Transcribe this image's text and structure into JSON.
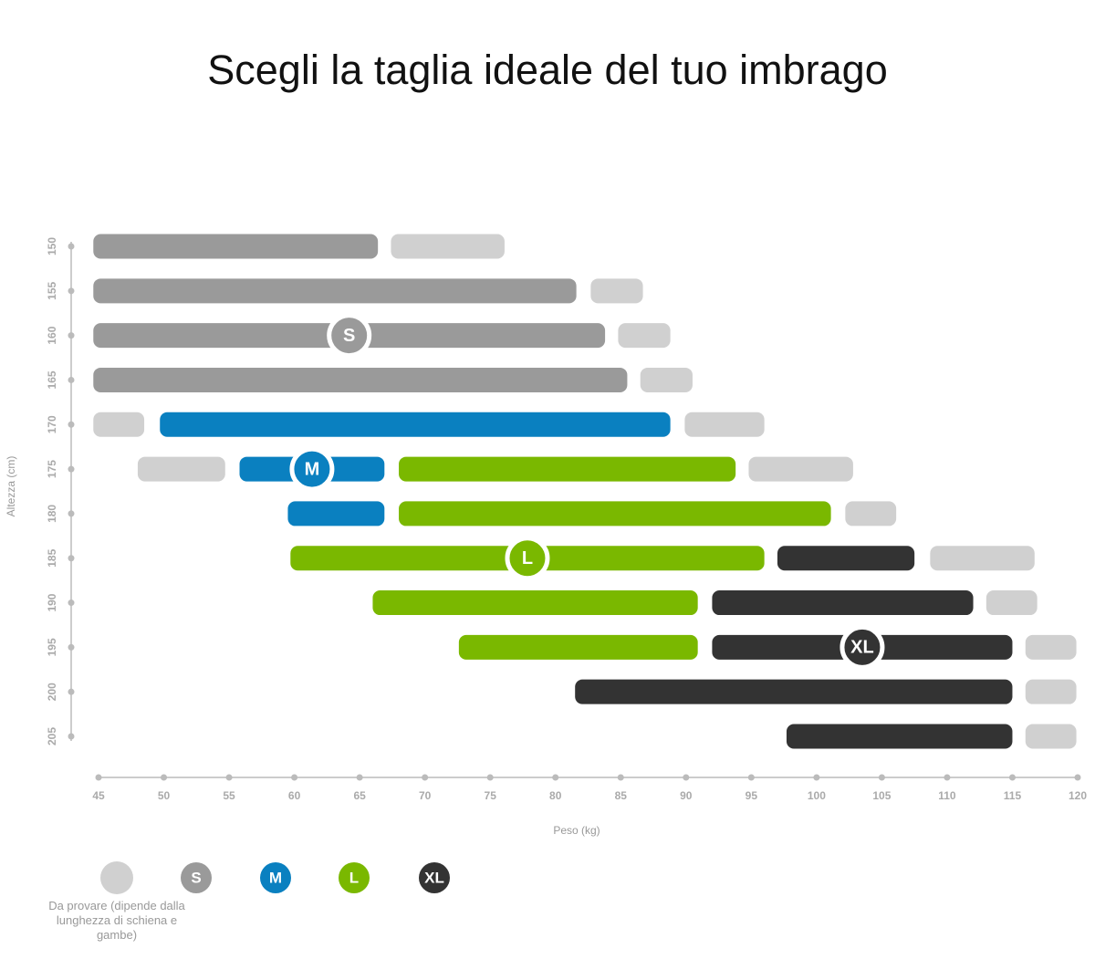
{
  "chart_data": {
    "type": "range-bar",
    "title": "Scegli la taglia ideale del tuo imbrago",
    "x_label": "Peso (kg)",
    "y_label": "Altezza (cm)",
    "xlim": [
      45,
      120
    ],
    "xticks": [
      45,
      50,
      55,
      60,
      65,
      70,
      75,
      80,
      85,
      90,
      95,
      100,
      105,
      110,
      115,
      120
    ],
    "ylim": [
      150,
      205
    ],
    "yticks": [
      150,
      155,
      160,
      165,
      170,
      175,
      180,
      185,
      190,
      195,
      200,
      205
    ],
    "series": [
      {
        "name": "Da provare (dipende dalla lunghezza di schiena e gambe)",
        "color": "#d0d0d0",
        "ranges": [
          {
            "y": 150,
            "start": 67.4,
            "end": 76.1
          },
          {
            "y": 155,
            "start": 82.7,
            "end": 86.7
          },
          {
            "y": 160,
            "start": 84.8,
            "end": 88.8
          },
          {
            "y": 165,
            "start": 86.5,
            "end": 90.5
          },
          {
            "y": 170,
            "start": 44.6,
            "end": 48.5
          },
          {
            "y": 170,
            "start": 89.9,
            "end": 96.0
          },
          {
            "y": 175,
            "start": 48.0,
            "end": 54.7
          },
          {
            "y": 175,
            "start": 94.8,
            "end": 102.8
          },
          {
            "y": 180,
            "start": 102.2,
            "end": 106.1
          },
          {
            "y": 185,
            "start": 108.7,
            "end": 116.7
          },
          {
            "y": 190,
            "start": 113.0,
            "end": 116.9
          },
          {
            "y": 195,
            "start": 116.0,
            "end": 119.9
          },
          {
            "y": 200,
            "start": 116.0,
            "end": 119.9
          },
          {
            "y": 205,
            "start": 116.0,
            "end": 119.9
          }
        ]
      },
      {
        "name": "S",
        "color": "#9a9a9a",
        "ranges": [
          {
            "y": 150,
            "start": 44.6,
            "end": 66.4
          },
          {
            "y": 155,
            "start": 44.6,
            "end": 81.6
          },
          {
            "y": 160,
            "start": 44.6,
            "end": 83.8
          },
          {
            "y": 165,
            "start": 44.6,
            "end": 85.5
          }
        ]
      },
      {
        "name": "M",
        "color": "#0a80c0",
        "ranges": [
          {
            "y": 170,
            "start": 49.7,
            "end": 88.8
          },
          {
            "y": 175,
            "start": 55.8,
            "end": 66.9
          },
          {
            "y": 180,
            "start": 59.5,
            "end": 66.9
          }
        ]
      },
      {
        "name": "L",
        "color": "#7ab800",
        "ranges": [
          {
            "y": 175,
            "start": 68.0,
            "end": 93.8
          },
          {
            "y": 180,
            "start": 68.0,
            "end": 101.1
          },
          {
            "y": 185,
            "start": 59.7,
            "end": 96.0
          },
          {
            "y": 190,
            "start": 66.0,
            "end": 90.9
          },
          {
            "y": 195,
            "start": 72.6,
            "end": 90.9
          }
        ]
      },
      {
        "name": "XL",
        "color": "#333333",
        "ranges": [
          {
            "y": 185,
            "start": 97.0,
            "end": 107.5
          },
          {
            "y": 190,
            "start": 92.0,
            "end": 112.0
          },
          {
            "y": 195,
            "start": 92.0,
            "end": 115.0
          },
          {
            "y": 200,
            "start": 81.5,
            "end": 115.0
          },
          {
            "y": 205,
            "start": 97.7,
            "end": 115.0
          }
        ]
      }
    ]
  }
}
